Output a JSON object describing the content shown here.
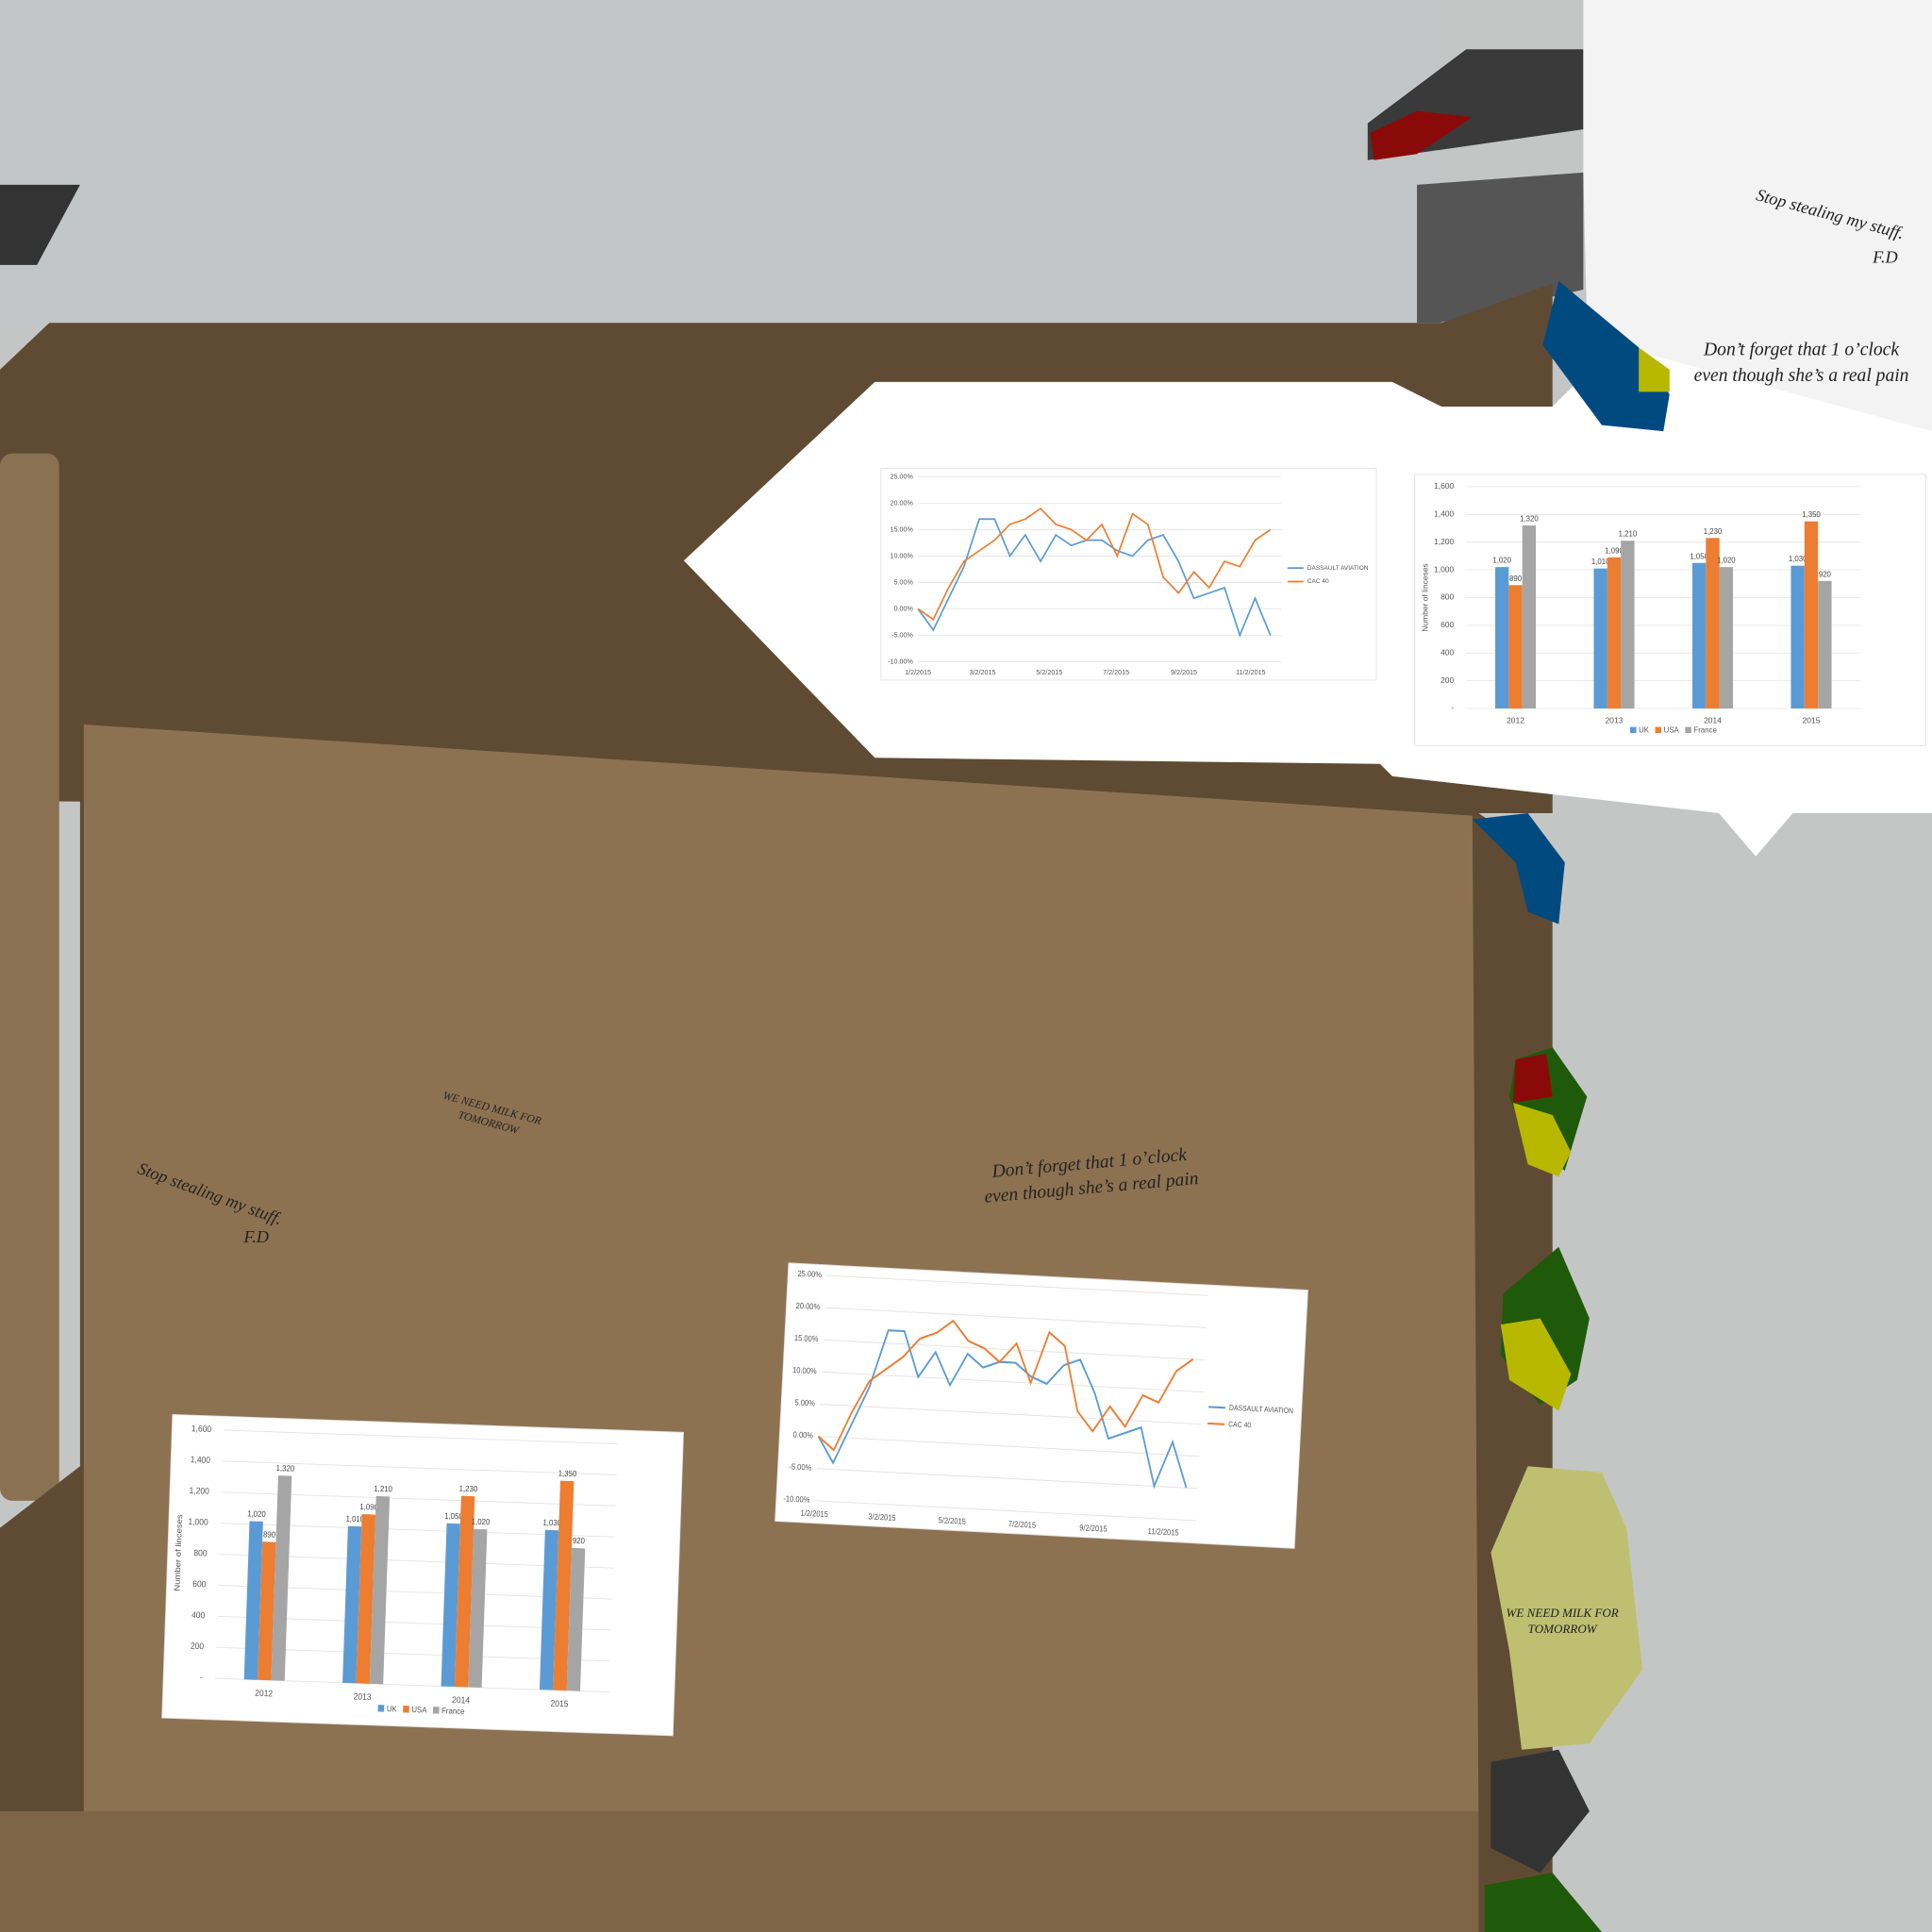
{
  "notes": {
    "stealing": "Stop stealing my stuff.",
    "signature": "F.D",
    "meeting": [
      "Don’t forget that 1 o’clock",
      "even though she’s a real pain"
    ],
    "milk": [
      "WE NEED MILK FOR",
      "TOMORROW"
    ]
  },
  "chart_data": [
    {
      "type": "line",
      "x": [
        "1/2/2015",
        "1/16/2015",
        "1/30/2015",
        "2/13/2015",
        "2/27/2015",
        "3/13/2015",
        "3/27/2015",
        "4/10/2015",
        "4/24/2015",
        "5/8/2015",
        "5/22/2015",
        "6/5/2015",
        "6/19/2015",
        "7/3/2015",
        "7/17/2015",
        "7/31/2015",
        "8/14/2015",
        "8/28/2015",
        "9/11/2015",
        "9/25/2015",
        "10/9/2015",
        "10/23/2015",
        "11/6/2015",
        "11/20/2015"
      ],
      "series": [
        {
          "name": "DASSAULT AVIATION",
          "color": "#5b9bd5",
          "values": [
            0,
            -4,
            2,
            8,
            17,
            17,
            10,
            14,
            9,
            14,
            12,
            13,
            13,
            11,
            10,
            13,
            14,
            9,
            2,
            3,
            4,
            -5,
            2,
            -5
          ]
        },
        {
          "name": "CAC 40",
          "color": "#ed7d31",
          "values": [
            0,
            -2,
            4,
            9,
            11,
            13,
            16,
            17,
            19,
            16,
            15,
            13,
            16,
            10,
            18,
            16,
            6,
            3,
            7,
            4,
            9,
            8,
            13,
            15
          ]
        }
      ],
      "xlim": [
        "1/2/2015",
        "11/30/2015"
      ],
      "xticks": [
        "1/2/2015",
        "3/2/2015",
        "5/2/2015",
        "7/2/2015",
        "9/2/2015",
        "11/2/2015"
      ],
      "ylim": [
        -10,
        25
      ],
      "yticks": [
        {
          "value": -10,
          "label": "-10.00%"
        },
        {
          "value": -5,
          "label": "-5.00%"
        },
        {
          "value": 0,
          "label": "0.00%"
        },
        {
          "value": 5,
          "label": "5.00%"
        },
        {
          "value": 10,
          "label": "10.00%"
        },
        {
          "value": 15,
          "label": "15.00%"
        },
        {
          "value": 20,
          "label": "20.00%"
        },
        {
          "value": 25,
          "label": "25.00%"
        }
      ],
      "grid": true,
      "legend": "right"
    },
    {
      "type": "bar",
      "y_label": "Number of linceses",
      "categories": [
        "2012",
        "2013",
        "2014",
        "2015"
      ],
      "series": [
        {
          "name": "UK",
          "color": "#5b9bd5",
          "values": [
            1020,
            1010,
            1050,
            1030
          ],
          "value_labels": [
            "1,020",
            "1,010",
            "1,050",
            "1,030"
          ]
        },
        {
          "name": "USA",
          "color": "#ed7d31",
          "values": [
            890,
            1090,
            1230,
            1350
          ],
          "value_labels": [
            "890",
            "1,090",
            "1,230",
            "1,350"
          ]
        },
        {
          "name": "France",
          "color": "#a5a5a5",
          "values": [
            1320,
            1210,
            1020,
            920
          ],
          "value_labels": [
            "1,320",
            "1,210",
            "1,020",
            "920"
          ]
        }
      ],
      "ylim": [
        0,
        1600
      ],
      "yticks": [
        {
          "value": 0,
          "label": "-"
        },
        200,
        400,
        600,
        800,
        {
          "value": 1000,
          "label": "1,000"
        },
        {
          "value": 1200,
          "label": "1,200"
        },
        {
          "value": 1400,
          "label": "1,400"
        },
        {
          "value": 1600,
          "label": "1,600"
        }
      ],
      "grid": true,
      "legend": "bottom"
    }
  ]
}
